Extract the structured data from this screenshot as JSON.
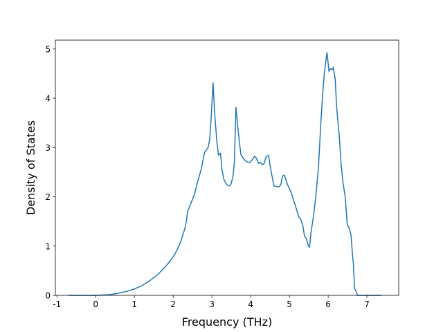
{
  "chart_data": {
    "type": "line",
    "xlabel": "Frequency (THz)",
    "ylabel": "Density of States",
    "xlim": [
      -1.04,
      7.82
    ],
    "ylim": [
      0,
      5.18
    ],
    "xticks": [
      -1,
      0,
      1,
      2,
      3,
      4,
      5,
      6,
      7
    ],
    "yticks": [
      0,
      1,
      2,
      3,
      4,
      5
    ],
    "series": [
      {
        "color": "#1f77b4",
        "x": [
          -0.7,
          0,
          0.3,
          0.5,
          0.8,
          1.0,
          1.2,
          1.4,
          1.6,
          1.8,
          2.0,
          2.1,
          2.2,
          2.3,
          2.34,
          2.37,
          2.45,
          2.55,
          2.63,
          2.72,
          2.81,
          2.9,
          2.94,
          2.98,
          3.03,
          3.07,
          3.13,
          3.17,
          3.22,
          3.26,
          3.31,
          3.38,
          3.44,
          3.49,
          3.54,
          3.58,
          3.62,
          3.67,
          3.71,
          3.75,
          3.84,
          3.92,
          3.98,
          4.05,
          4.1,
          4.15,
          4.2,
          4.25,
          4.3,
          4.35,
          4.4,
          4.46,
          4.52,
          4.6,
          4.73,
          4.78,
          4.82,
          4.87,
          4.95,
          5.04,
          5.12,
          5.2,
          5.25,
          5.29,
          5.35,
          5.39,
          5.44,
          5.49,
          5.52,
          5.56,
          5.62,
          5.68,
          5.75,
          5.81,
          5.86,
          5.9,
          5.97,
          6.02,
          6.06,
          6.1,
          6.13,
          6.18,
          6.22,
          6.29,
          6.33,
          6.38,
          6.44,
          6.49,
          6.55,
          6.59,
          6.63,
          6.65,
          6.68,
          6.76,
          7.37
        ],
        "values": [
          0,
          0,
          0.01,
          0.03,
          0.08,
          0.13,
          0.2,
          0.3,
          0.42,
          0.58,
          0.78,
          0.92,
          1.1,
          1.35,
          1.5,
          1.7,
          1.85,
          2.05,
          2.3,
          2.55,
          2.9,
          3.0,
          3.15,
          3.6,
          4.32,
          3.7,
          3.1,
          2.85,
          2.88,
          2.55,
          2.35,
          2.25,
          2.22,
          2.25,
          2.4,
          2.7,
          3.82,
          3.4,
          3.1,
          2.85,
          2.75,
          2.7,
          2.7,
          2.76,
          2.82,
          2.78,
          2.68,
          2.7,
          2.65,
          2.68,
          2.82,
          2.84,
          2.55,
          2.22,
          2.2,
          2.25,
          2.42,
          2.44,
          2.25,
          2.1,
          1.9,
          1.7,
          1.58,
          1.55,
          1.4,
          1.2,
          1.15,
          1.0,
          0.98,
          1.3,
          1.6,
          2.0,
          2.6,
          3.5,
          4.1,
          4.5,
          4.93,
          4.55,
          4.6,
          4.58,
          4.62,
          4.4,
          3.8,
          3.2,
          2.7,
          2.3,
          2.0,
          1.45,
          1.35,
          1.22,
          0.8,
          0.65,
          0.15,
          0,
          0
        ]
      }
    ]
  }
}
